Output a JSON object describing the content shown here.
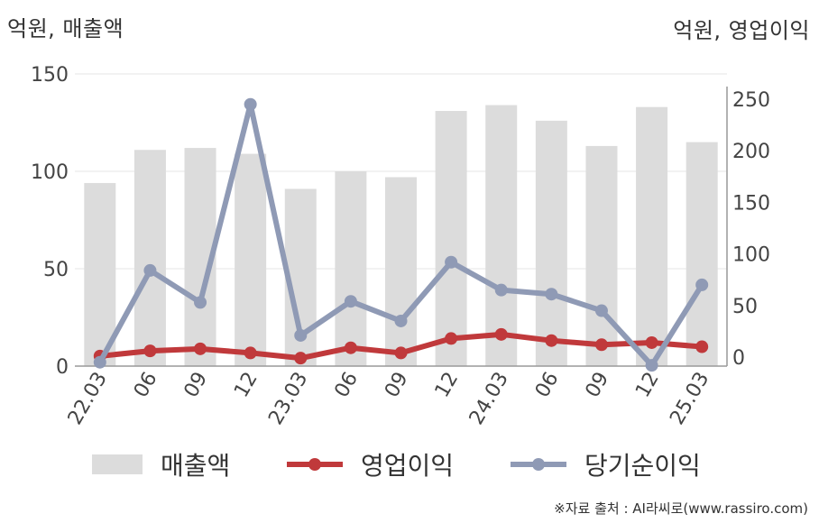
{
  "units": {
    "left": "억원, 매출액",
    "right": "억원, 영업이익"
  },
  "source": "※자료 출처 : AI라씨로(www.rassiro.com)",
  "legend": {
    "bar_label": "매출액",
    "op_label": "영업이익",
    "net_label": "당기순이익"
  },
  "colors": {
    "bar": "#dcdcdc",
    "op": "#c0393b",
    "net": "#8f9ab5",
    "grid": "#e6e6e6",
    "axis": "#999999"
  },
  "chart_data": {
    "type": "bar",
    "categories": [
      "22.03",
      "06",
      "09",
      "12",
      "23.03",
      "06",
      "09",
      "12",
      "24.03",
      "06",
      "09",
      "12",
      "25.03"
    ],
    "series": [
      {
        "name": "매출액",
        "type": "bar",
        "axis": "left",
        "values": [
          94,
          111,
          112,
          109,
          91,
          100,
          97,
          131,
          134,
          126,
          113,
          133,
          115
        ]
      },
      {
        "name": "영업이익",
        "type": "line",
        "axis": "right",
        "values": [
          1,
          6,
          8,
          4,
          -1,
          9,
          4,
          18,
          22,
          16,
          12,
          14,
          10
        ]
      },
      {
        "name": "당기순이익",
        "type": "line",
        "axis": "right",
        "values": [
          -5,
          84,
          53,
          245,
          21,
          54,
          35,
          92,
          65,
          61,
          45,
          -8,
          70
        ]
      }
    ],
    "y_left": {
      "range": [
        0,
        150
      ],
      "ticks": [
        0,
        50,
        100,
        150
      ]
    },
    "y_right": {
      "range": [
        -10,
        275
      ],
      "ticks": [
        0,
        50,
        100,
        150,
        200,
        250
      ]
    },
    "grid": true,
    "legend_position": "bottom"
  }
}
